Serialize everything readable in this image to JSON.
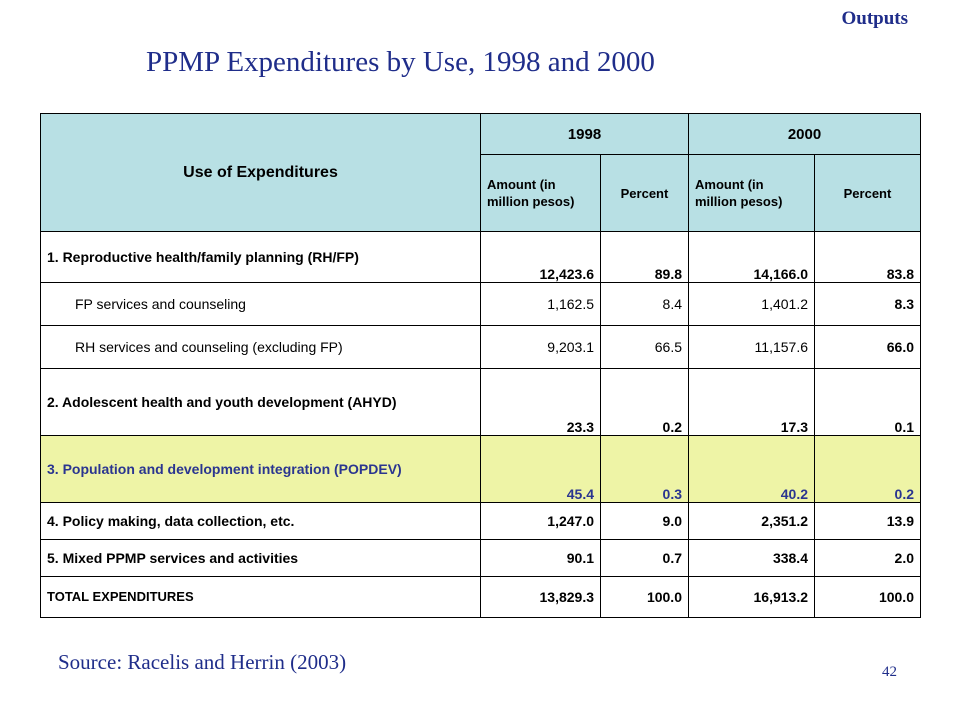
{
  "header": {
    "section_label": "Outputs",
    "title": "PPMP Expenditures by Use, 1998 and 2000"
  },
  "table": {
    "use_header": "Use of Expenditures",
    "years": [
      "1998",
      "2000"
    ],
    "amount_header": "Amount (in million pesos)",
    "percent_header": "Percent",
    "rows": [
      {
        "label": "1.  Reproductive health/family planning (RH/FP)",
        "a1998": "12,423.6",
        "p1998": "89.8",
        "a2000": "14,166.0",
        "p2000": "83.8"
      },
      {
        "label": "FP services and counseling",
        "a1998": "1,162.5",
        "p1998": "8.4",
        "a2000": "1,401.2",
        "p2000": "8.3"
      },
      {
        "label": "RH services and counseling (excluding FP)",
        "a1998": "9,203.1",
        "p1998": "66.5",
        "a2000": "11,157.6",
        "p2000": "66.0"
      },
      {
        "label": "2.  Adolescent health and youth development (AHYD)",
        "a1998": "23.3",
        "p1998": "0.2",
        "a2000": "17.3",
        "p2000": "0.1"
      },
      {
        "label": "3.  Population and development integration (POPDEV)",
        "a1998": "45.4",
        "p1998": "0.3",
        "a2000": "40.2",
        "p2000": "0.2"
      },
      {
        "label": "4. Policy making, data collection, etc.",
        "a1998": "1,247.0",
        "p1998": "9.0",
        "a2000": "2,351.2",
        "p2000": "13.9"
      },
      {
        "label": "5.  Mixed PPMP services and activities",
        "a1998": "90.1",
        "p1998": "0.7",
        "a2000": "338.4",
        "p2000": "2.0"
      },
      {
        "label": "TOTAL EXPENDITURES",
        "a1998": "13,829.3",
        "p1998": "100.0",
        "a2000": "16,913.2",
        "p2000": "100.0"
      }
    ]
  },
  "footer": {
    "source": "Source: Racelis and Herrin (2003)",
    "page_number": "42"
  },
  "colors": {
    "header_fill": "#b8e0e4",
    "highlight_fill": "#eef4a6",
    "title_color": "#1f2d8a"
  }
}
